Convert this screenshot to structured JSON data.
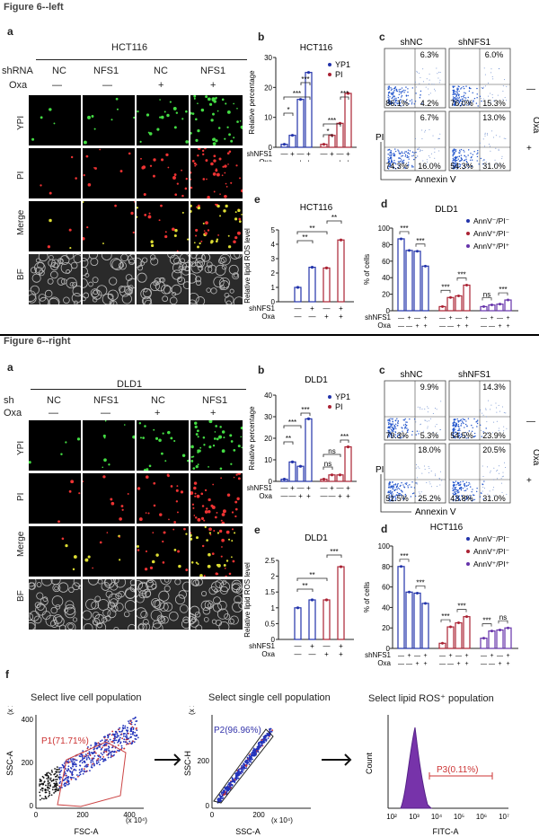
{
  "fig_left_title": "Figure 6--left",
  "fig_right_title": "Figure 6--right",
  "left": {
    "a": {
      "panel": "a",
      "cell": "HCT116",
      "shRNA_label": "shRNA",
      "oxa_label": "Oxa",
      "cols": [
        "NC",
        "NFS1",
        "NC",
        "NFS1"
      ],
      "oxa": [
        "—",
        "—",
        "+",
        "+"
      ],
      "rows": [
        "YPI",
        "PI",
        "Merge",
        "BF"
      ]
    },
    "b": {
      "panel": "b",
      "title": "HCT116",
      "ylabel": "Relative percentage",
      "legend": [
        "YP1",
        "PI"
      ],
      "sh": "shNFS1",
      "oxa": "Oxa",
      "sig": [
        "*",
        "***",
        "***",
        "*",
        "***",
        "***"
      ]
    },
    "c": {
      "panel": "c",
      "cols": [
        "shNC",
        "shNFS1"
      ],
      "side": "Oxa",
      "row_signs": [
        "—",
        "+"
      ],
      "ylab": "PI",
      "xlab": "Annexin V",
      "q": [
        [
          "6.3%",
          "86.1%",
          "4.2%"
        ],
        [
          "6.0%",
          "76.0%",
          "15.3%"
        ],
        [
          "6.7%",
          "74.3%",
          "16.0%"
        ],
        [
          "13.0%",
          "54.3%",
          "31.0%"
        ]
      ]
    },
    "d": {
      "panel": "d",
      "title": "DLD1",
      "ylabel": "% of cells",
      "legend": [
        "AnnV⁻/PI⁻",
        "AnnV⁺/PI⁻",
        "AnnV⁺/PI⁺"
      ],
      "sig": [
        "***",
        "***",
        "***",
        "***",
        "ns",
        "***"
      ],
      "sh": "shNFS1",
      "oxa": "Oxa",
      "yticks": [
        "0",
        "20",
        "40",
        "60",
        "80",
        "100"
      ]
    },
    "e": {
      "panel": "e",
      "title": "HCT116",
      "ylabel": "Relative lipid ROS level",
      "sig": [
        "**",
        "**",
        "**"
      ],
      "sh": "shNFS1",
      "oxa": "Oxa"
    }
  },
  "right": {
    "a": {
      "panel": "a",
      "cell": "DLD1",
      "shRNA_label": "sh",
      "oxa_label": "Oxa",
      "cols": [
        "NC",
        "NFS1",
        "NC",
        "NFS1"
      ],
      "oxa": [
        "—",
        "—",
        "+",
        "+"
      ],
      "rows": [
        "YPI",
        "PI",
        "Merge",
        "BF"
      ]
    },
    "b": {
      "panel": "b",
      "title": "DLD1",
      "ylabel": "Relative percentage",
      "legend": [
        "YP1",
        "PI"
      ],
      "sh": "shNFS1",
      "oxa": "Oxa",
      "sig": [
        "**",
        "***",
        "***",
        "ns",
        "ns",
        "***"
      ]
    },
    "c": {
      "panel": "c",
      "cols": [
        "shNC",
        "shNFS1"
      ],
      "side": "Oxa",
      "row_signs": [
        "—",
        "+"
      ],
      "ylab": "PI",
      "xlab": "Annexin V",
      "q": [
        [
          "9.9%",
          "79.3%",
          "5.3%"
        ],
        [
          "14.3%",
          "54.5%",
          "23.9%"
        ],
        [
          "18.0%",
          "51.5%",
          "25.2%"
        ],
        [
          "20.5%",
          "43.8%",
          "31.0%"
        ]
      ]
    },
    "d": {
      "panel": "d",
      "title": "HCT116",
      "ylabel": "% of cells",
      "legend": [
        "AnnV⁻/PI⁻",
        "AnnV⁺/PI⁻",
        "AnnV⁺/PI⁺"
      ],
      "sig": [
        "***",
        "***",
        "***",
        "***",
        "***",
        "ns"
      ],
      "sh": "shNFS1",
      "oxa": "Oxa",
      "yticks": [
        "0",
        "20",
        "40",
        "60",
        "80",
        "100"
      ]
    },
    "e": {
      "panel": "e",
      "title": "DLD1",
      "ylabel": "Relative lipid ROS level",
      "sig": [
        "**",
        "**",
        "***"
      ],
      "sh": "shNFS1",
      "oxa": "Oxa"
    }
  },
  "f": {
    "panel": "f",
    "g1": {
      "title": "Select live cell population",
      "gate": "P1(71.71%)",
      "xlab": "FSC-A",
      "ylab": "SSC-A",
      "unit": "(x 10⁴)",
      "xt": [
        "0",
        "200",
        "400"
      ],
      "yt": [
        "0",
        "200",
        "400"
      ]
    },
    "g2": {
      "title": "Select single cell population",
      "gate": "P2(96.96%)",
      "xlab": "SSC-A",
      "ylab": "SSC-H",
      "unit": "(x 10⁴)",
      "xt": [
        "0",
        "200"
      ],
      "yt": [
        "0",
        "200"
      ]
    },
    "g3": {
      "title": "Select lipid ROS⁺ population",
      "gate": "P3(0.11%)",
      "xlab": "FITC-A",
      "ylab": "Count",
      "xt": [
        "10²",
        "10³",
        "10⁴",
        "10⁵",
        "10⁶",
        "10⁷"
      ]
    }
  },
  "chart_data": [
    {
      "type": "bar",
      "id": "left-b",
      "title": "HCT116",
      "ylabel": "Relative percentage",
      "categories": [
        "YP1 NC",
        "YP1 shNFS1",
        "YP1 NC+Oxa",
        "YP1 shNFS1+Oxa",
        "PI NC",
        "PI shNFS1",
        "PI NC+Oxa",
        "PI shNFS1+Oxa"
      ],
      "values": [
        1,
        4,
        16,
        25,
        1,
        4,
        8,
        18
      ],
      "ylim": [
        0,
        30
      ]
    },
    {
      "type": "bar",
      "id": "left-d",
      "title": "DLD1",
      "ylabel": "% of cells",
      "series": [
        {
          "name": "AnnV⁻/PI⁻",
          "values": [
            87,
            73,
            72,
            54
          ]
        },
        {
          "name": "AnnV⁺/PI⁻",
          "values": [
            5,
            16,
            18,
            31
          ]
        },
        {
          "name": "AnnV⁺/PI⁺",
          "values": [
            5,
            7,
            8,
            13
          ]
        }
      ],
      "categories": [
        "NC",
        "shNFS1",
        "NC+Oxa",
        "shNFS1+Oxa"
      ],
      "ylim": [
        0,
        100
      ]
    },
    {
      "type": "bar",
      "id": "left-e",
      "title": "HCT116",
      "ylabel": "Relative lipid ROS level",
      "categories": [
        "NC",
        "shNFS1",
        "NC+Oxa",
        "shNFS1+Oxa"
      ],
      "values": [
        1.0,
        2.4,
        2.35,
        4.3
      ],
      "ylim": [
        0,
        5
      ]
    },
    {
      "type": "bar",
      "id": "right-b",
      "title": "DLD1",
      "ylabel": "Relative percentage",
      "categories": [
        "YP1 NC",
        "YP1 shNFS1",
        "YP1 NC+Oxa",
        "YP1 shNFS1+Oxa",
        "PI NC",
        "PI shNFS1",
        "PI NC+Oxa",
        "PI shNFS1+Oxa"
      ],
      "values": [
        1,
        9,
        7,
        29,
        1,
        3,
        3,
        16
      ],
      "ylim": [
        0,
        40
      ]
    },
    {
      "type": "bar",
      "id": "right-d",
      "title": "HCT116",
      "ylabel": "% of cells",
      "series": [
        {
          "name": "AnnV⁻/PI⁻",
          "values": [
            80,
            55,
            54,
            44
          ]
        },
        {
          "name": "AnnV⁺/PI⁻",
          "values": [
            5,
            21,
            25,
            31
          ]
        },
        {
          "name": "AnnV⁺/PI⁺",
          "values": [
            10,
            17,
            18,
            20
          ]
        }
      ],
      "categories": [
        "NC",
        "shNFS1",
        "NC+Oxa",
        "shNFS1+Oxa"
      ],
      "ylim": [
        0,
        100
      ]
    },
    {
      "type": "bar",
      "id": "right-e",
      "title": "DLD1",
      "ylabel": "Relative lipid ROS level",
      "categories": [
        "NC",
        "shNFS1",
        "NC+Oxa",
        "shNFS1+Oxa"
      ],
      "values": [
        1.0,
        1.25,
        1.25,
        2.3
      ],
      "ylim": [
        0,
        2.5
      ]
    }
  ]
}
